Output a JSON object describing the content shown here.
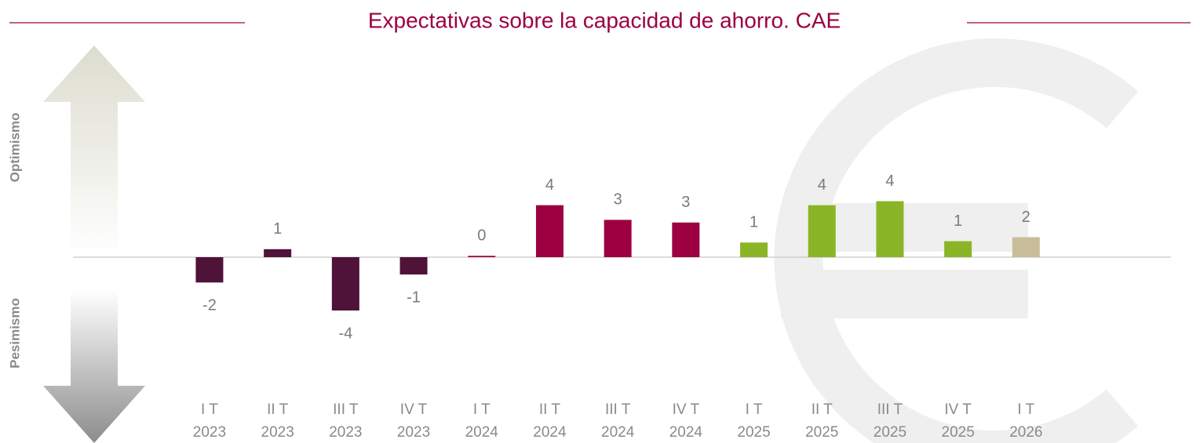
{
  "chart_data": {
    "type": "bar",
    "title": "Expectativas sobre la capacidad de ahorro. CAE",
    "annotations": [
      "Optimismo",
      "Pesimismo"
    ],
    "categories": [
      "I T 2023",
      "II T 2023",
      "III T 2023",
      "IV T 2023",
      "I T 2024",
      "II T 2024",
      "III T 2024",
      "IV T 2024",
      "I T 2025",
      "II T 2025",
      "III T 2025",
      "IV T 2025",
      "I T 2026"
    ],
    "values": [
      -1.9,
      0.6,
      -4.0,
      -1.3,
      0.1,
      3.9,
      2.8,
      2.6,
      1.1,
      3.9,
      4.2,
      1.2,
      1.5
    ],
    "value_labels": [
      "-2",
      "1",
      "-4",
      "-1",
      "0",
      "4",
      "3",
      "3",
      "1",
      "4",
      "4",
      "1",
      "2"
    ],
    "colors": [
      "#4f1238",
      "#4f1238",
      "#4f1238",
      "#4f1238",
      "#9c0040",
      "#9c0040",
      "#9c0040",
      "#9c0040",
      "#8ab526",
      "#8ab526",
      "#8ab526",
      "#8ab526",
      "#c8bd98"
    ],
    "ylim": [
      -7,
      7
    ]
  }
}
